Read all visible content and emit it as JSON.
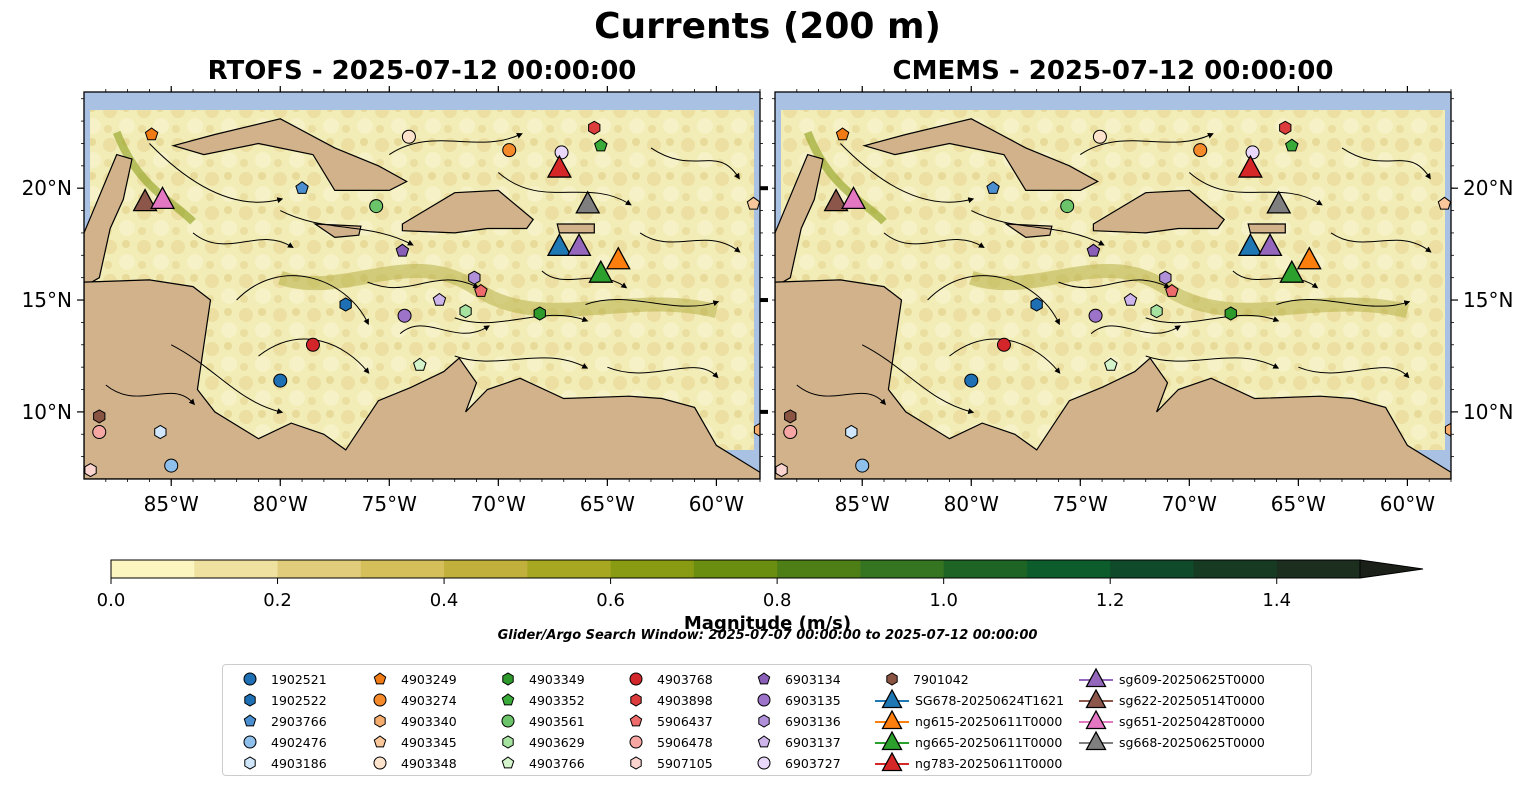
{
  "figure": {
    "title": "Currents (200 m)",
    "panels": [
      {
        "title": "RTOFS - 2025-07-12 00:00:00"
      },
      {
        "title": "CMEMS - 2025-07-12 00:00:00"
      }
    ],
    "lon_ticks": [
      "85°W",
      "80°W",
      "75°W",
      "70°W",
      "65°W",
      "60°W"
    ],
    "lat_ticks": [
      "20°N",
      "15°N",
      "10°N"
    ],
    "extent": {
      "lon": [
        -89,
        -58
      ],
      "lat": [
        7.0,
        24.3
      ]
    }
  },
  "colorbar": {
    "label": "Magnitude (m/s)",
    "ticks": [
      "0.0",
      "0.2",
      "0.4",
      "0.6",
      "0.8",
      "1.0",
      "1.2",
      "1.4"
    ],
    "range": [
      0,
      1.5
    ],
    "colors": [
      "#fbf5c0",
      "#efe19f",
      "#e0cc7a",
      "#d4bf5a",
      "#c2b03c",
      "#a8a722",
      "#889b12",
      "#6a8e10",
      "#4e7f16",
      "#357420",
      "#1e6424",
      "#0c5c2c",
      "#0f4a2a",
      "#173a23",
      "#1c2e1e",
      "#1a2018"
    ]
  },
  "search_window": "Glider/Argo Search Window: 2025-07-07 00:00:00 to 2025-07-12 00:00:00",
  "map_colors": {
    "ocean": "#a9c1e3",
    "land": "#d1b28b"
  },
  "legend": [
    {
      "label": "1902521",
      "marker": "circle",
      "color": "#1f6fb4"
    },
    {
      "label": "1902522",
      "marker": "hexagon",
      "color": "#1f6fb4"
    },
    {
      "label": "2903766",
      "marker": "pentagon",
      "color": "#4c8fd0"
    },
    {
      "label": "4902476",
      "marker": "circle",
      "color": "#8fc0ec"
    },
    {
      "label": "4903186",
      "marker": "hexagon",
      "color": "#cfe6fb"
    },
    {
      "label": "4903249",
      "marker": "pentagon",
      "color": "#f07a14"
    },
    {
      "label": "4903274",
      "marker": "circle",
      "color": "#f58a2a"
    },
    {
      "label": "4903340",
      "marker": "hexagon",
      "color": "#f5ad6e"
    },
    {
      "label": "4903345",
      "marker": "pentagon",
      "color": "#fac79a"
    },
    {
      "label": "4903348",
      "marker": "circle",
      "color": "#fde3cc"
    },
    {
      "label": "4903349",
      "marker": "hexagon",
      "color": "#2f9a2c"
    },
    {
      "label": "4903352",
      "marker": "pentagon",
      "color": "#3aab38"
    },
    {
      "label": "4903561",
      "marker": "circle",
      "color": "#6cc46a"
    },
    {
      "label": "4903629",
      "marker": "hexagon",
      "color": "#a6e3a0"
    },
    {
      "label": "4903766",
      "marker": "pentagon",
      "color": "#d4f5cc"
    },
    {
      "label": "4903768",
      "marker": "circle",
      "color": "#d2262b"
    },
    {
      "label": "4903898",
      "marker": "hexagon",
      "color": "#dd3c3c"
    },
    {
      "label": "5906437",
      "marker": "pentagon",
      "color": "#ee6b6b"
    },
    {
      "label": "5906478",
      "marker": "circle",
      "color": "#f6a7a3"
    },
    {
      "label": "5907105",
      "marker": "hexagon",
      "color": "#fbd4d0"
    },
    {
      "label": "6903134",
      "marker": "pentagon",
      "color": "#8a5fb8"
    },
    {
      "label": "6903135",
      "marker": "circle",
      "color": "#9c73c8"
    },
    {
      "label": "6903136",
      "marker": "hexagon",
      "color": "#b090d8"
    },
    {
      "label": "6903137",
      "marker": "pentagon",
      "color": "#cdb4ea"
    },
    {
      "label": "6903727",
      "marker": "circle",
      "color": "#ead8fb"
    },
    {
      "label": "7901042",
      "marker": "hexagon",
      "color": "#8a5443"
    },
    {
      "label": "SG678-20250624T1621",
      "marker": "triangle",
      "color": "#1f77b4"
    },
    {
      "label": "ng615-20250611T0000",
      "marker": "triangle",
      "color": "#ff7f0e"
    },
    {
      "label": "ng665-20250611T0000",
      "marker": "triangle",
      "color": "#2ca02c"
    },
    {
      "label": "ng783-20250611T0000",
      "marker": "triangle",
      "color": "#d62728"
    },
    {
      "label": "sg609-20250625T0000",
      "marker": "triangle",
      "color": "#9467bd"
    },
    {
      "label": "sg622-20250514T0000",
      "marker": "triangle",
      "color": "#8c564b"
    },
    {
      "label": "sg651-20250428T0000",
      "marker": "triangle",
      "color": "#e377c2"
    },
    {
      "label": "sg668-20250625T0000",
      "marker": "triangle",
      "color": "#7f7f7f"
    }
  ],
  "gliders": [
    {
      "label": "SG678-20250624T1621",
      "lon": -67.2,
      "lat": 17.4
    },
    {
      "label": "ng615-20250611T0000",
      "lon": -64.5,
      "lat": 16.8
    },
    {
      "label": "ng665-20250611T0000",
      "lon": -65.3,
      "lat": 16.2
    },
    {
      "label": "ng783-20250611T0000",
      "lon": -67.2,
      "lat": 20.9
    },
    {
      "label": "sg609-20250625T0000",
      "lon": -66.3,
      "lat": 17.4
    },
    {
      "label": "sg622-20250514T0000",
      "lon": -86.2,
      "lat": 19.4
    },
    {
      "label": "sg651-20250428T0000",
      "lon": -85.4,
      "lat": 19.5
    },
    {
      "label": "sg668-20250625T0000",
      "lon": -65.9,
      "lat": 19.3
    }
  ],
  "floats": [
    {
      "label": "1902521",
      "lon": -80.0,
      "lat": 11.4
    },
    {
      "label": "2903766",
      "lon": -79.0,
      "lat": 20.0
    },
    {
      "label": "1902522",
      "lon": -77.0,
      "lat": 14.8
    },
    {
      "label": "4902476",
      "lon": -85.0,
      "lat": 7.6
    },
    {
      "label": "4903186",
      "lon": -85.5,
      "lat": 9.1
    },
    {
      "label": "4903249",
      "lon": -85.9,
      "lat": 22.4
    },
    {
      "label": "4903274",
      "lon": -69.5,
      "lat": 21.7
    },
    {
      "label": "4903340",
      "lon": -58.0,
      "lat": 9.2
    },
    {
      "label": "4903345",
      "lon": -58.3,
      "lat": 19.3
    },
    {
      "label": "4903348",
      "lon": -74.1,
      "lat": 22.3
    },
    {
      "label": "4903349",
      "lon": -68.1,
      "lat": 14.4
    },
    {
      "label": "4903352",
      "lon": -65.3,
      "lat": 21.9
    },
    {
      "label": "4903561",
      "lon": -75.6,
      "lat": 19.2
    },
    {
      "label": "4903629",
      "lon": -71.5,
      "lat": 14.5
    },
    {
      "label": "4903766",
      "lon": -73.6,
      "lat": 12.1
    },
    {
      "label": "4903768",
      "lon": -78.5,
      "lat": 13.0
    },
    {
      "label": "4903898",
      "lon": -65.6,
      "lat": 22.7
    },
    {
      "label": "5906437",
      "lon": -70.8,
      "lat": 15.4
    },
    {
      "label": "5906478",
      "lon": -88.3,
      "lat": 9.1
    },
    {
      "label": "5907105",
      "lon": -88.7,
      "lat": 7.4
    },
    {
      "label": "6903134",
      "lon": -74.4,
      "lat": 17.2
    },
    {
      "label": "6903135",
      "lon": -74.3,
      "lat": 14.3
    },
    {
      "label": "6903136",
      "lon": -71.1,
      "lat": 16.0
    },
    {
      "label": "6903137",
      "lon": -72.7,
      "lat": 15.0
    },
    {
      "label": "6903727",
      "lon": -67.1,
      "lat": 21.6
    },
    {
      "label": "7901042",
      "lon": -88.3,
      "lat": 9.8
    }
  ]
}
